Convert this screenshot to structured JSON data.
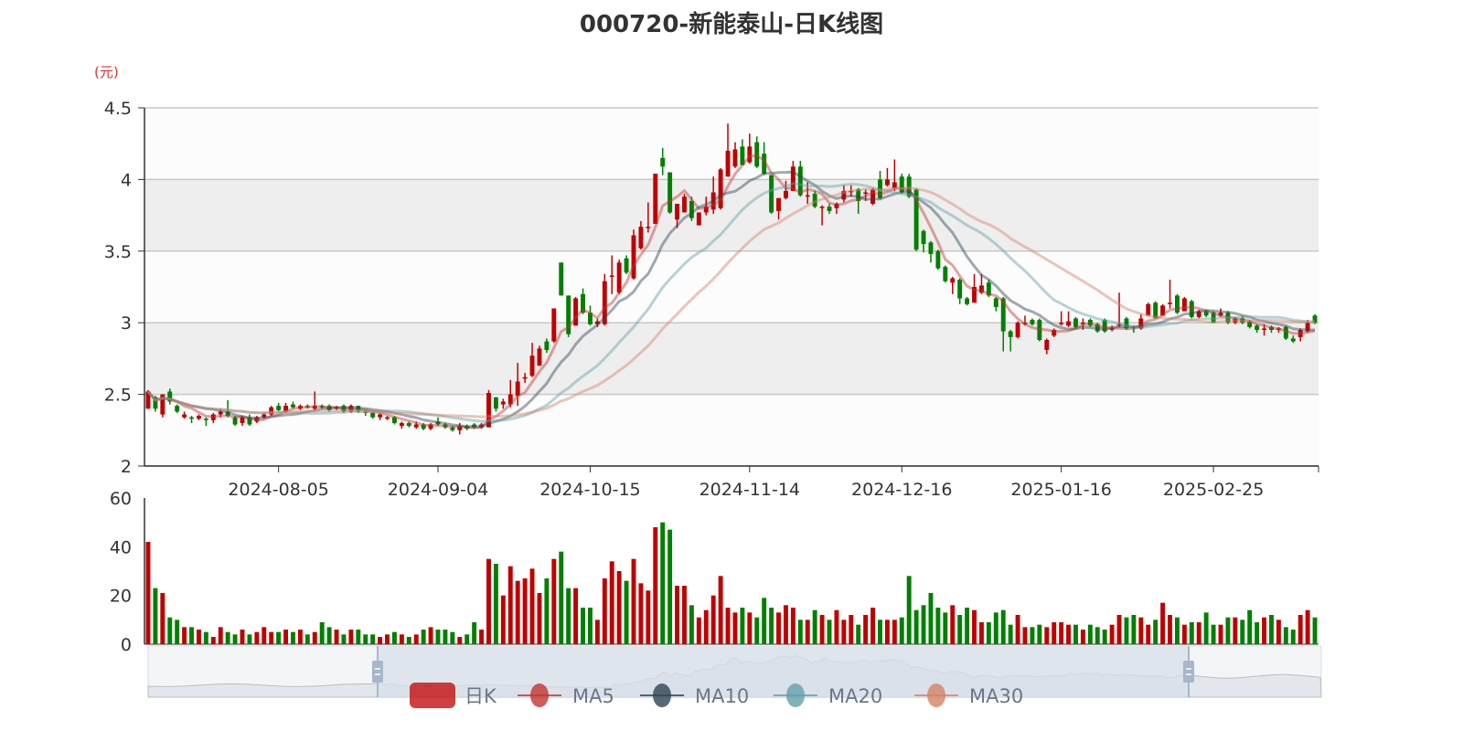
{
  "title": "000720-新能泰山-日K线图",
  "unit_label": "(元)",
  "colors": {
    "up": "#c00000",
    "down": "#008000",
    "ma5": "#c23531",
    "ma10": "#2f4554",
    "ma20": "#61a0a8",
    "ma30": "#d48265",
    "band": "#eeeeee",
    "zoom_fill": "#d8dfe9"
  },
  "legend": [
    {
      "label": "日K",
      "icon": "candlestick-icon",
      "color": "#c00000"
    },
    {
      "label": "MA5",
      "icon": "line-dot-icon",
      "color": "#c23531"
    },
    {
      "label": "MA10",
      "icon": "line-dot-icon",
      "color": "#2f4554"
    },
    {
      "label": "MA20",
      "icon": "line-dot-icon",
      "color": "#61a0a8"
    },
    {
      "label": "MA30",
      "icon": "line-dot-icon",
      "color": "#d48265"
    }
  ],
  "chart_data": {
    "type": "candlestick",
    "title": "000720-新能泰山-日K线图",
    "ylabel": "(元)",
    "ylim": [
      2,
      4.5
    ],
    "yticks": [
      "2",
      "2.5",
      "3",
      "3.5",
      "4",
      "4.5"
    ],
    "volume_ylim": [
      0,
      60
    ],
    "volume_yticks": [
      "0",
      "20",
      "40",
      "60"
    ],
    "xticks": [
      {
        "index": 18,
        "label": "2024-08-05"
      },
      {
        "index": 40,
        "label": "2024-09-04"
      },
      {
        "index": 61,
        "label": "2024-10-15"
      },
      {
        "index": 83,
        "label": "2024-11-14"
      },
      {
        "index": 104,
        "label": "2024-12-16"
      },
      {
        "index": 126,
        "label": "2025-01-16"
      },
      {
        "index": 147,
        "label": "2025-02-25"
      }
    ],
    "candle_format": [
      "open",
      "close",
      "low",
      "high"
    ],
    "candles": [
      [
        2.4,
        2.52,
        2.4,
        2.53
      ],
      [
        2.48,
        2.4,
        2.38,
        2.49
      ],
      [
        2.36,
        2.5,
        2.34,
        2.5
      ],
      [
        2.52,
        2.45,
        2.43,
        2.54
      ],
      [
        2.42,
        2.38,
        2.37,
        2.43
      ],
      [
        2.34,
        2.36,
        2.33,
        2.38
      ],
      [
        2.34,
        2.33,
        2.3,
        2.35
      ],
      [
        2.33,
        2.35,
        2.32,
        2.36
      ],
      [
        2.33,
        2.32,
        2.28,
        2.34
      ],
      [
        2.32,
        2.36,
        2.3,
        2.37
      ],
      [
        2.36,
        2.38,
        2.34,
        2.4
      ],
      [
        2.38,
        2.35,
        2.34,
        2.46
      ],
      [
        2.34,
        2.29,
        2.28,
        2.35
      ],
      [
        2.3,
        2.34,
        2.28,
        2.35
      ],
      [
        2.34,
        2.29,
        2.28,
        2.36
      ],
      [
        2.31,
        2.34,
        2.3,
        2.35
      ],
      [
        2.34,
        2.36,
        2.33,
        2.37
      ],
      [
        2.36,
        2.41,
        2.35,
        2.42
      ],
      [
        2.42,
        2.39,
        2.38,
        2.44
      ],
      [
        2.38,
        2.42,
        2.37,
        2.44
      ],
      [
        2.43,
        2.41,
        2.4,
        2.45
      ],
      [
        2.4,
        2.42,
        2.39,
        2.43
      ],
      [
        2.42,
        2.41,
        2.4,
        2.43
      ],
      [
        2.4,
        2.42,
        2.39,
        2.52
      ],
      [
        2.42,
        2.41,
        2.4,
        2.43
      ],
      [
        2.42,
        2.39,
        2.38,
        2.43
      ],
      [
        2.4,
        2.41,
        2.39,
        2.42
      ],
      [
        2.42,
        2.38,
        2.37,
        2.43
      ],
      [
        2.38,
        2.42,
        2.37,
        2.43
      ],
      [
        2.42,
        2.38,
        2.37,
        2.42
      ],
      [
        2.38,
        2.37,
        2.35,
        2.39
      ],
      [
        2.37,
        2.34,
        2.33,
        2.38
      ],
      [
        2.34,
        2.36,
        2.32,
        2.37
      ],
      [
        2.33,
        2.34,
        2.32,
        2.35
      ],
      [
        2.34,
        2.3,
        2.29,
        2.35
      ],
      [
        2.28,
        2.3,
        2.26,
        2.31
      ],
      [
        2.3,
        2.28,
        2.27,
        2.31
      ],
      [
        2.27,
        2.29,
        2.26,
        2.31
      ],
      [
        2.29,
        2.26,
        2.25,
        2.3
      ],
      [
        2.26,
        2.29,
        2.25,
        2.3
      ],
      [
        2.31,
        2.29,
        2.28,
        2.34
      ],
      [
        2.29,
        2.27,
        2.26,
        2.3
      ],
      [
        2.27,
        2.25,
        2.24,
        2.28
      ],
      [
        2.25,
        2.28,
        2.22,
        2.3
      ],
      [
        2.28,
        2.26,
        2.25,
        2.29
      ],
      [
        2.29,
        2.27,
        2.26,
        2.3
      ],
      [
        2.27,
        2.29,
        2.26,
        2.3
      ],
      [
        2.27,
        2.51,
        2.27,
        2.53
      ],
      [
        2.48,
        2.4,
        2.38,
        2.48
      ],
      [
        2.43,
        2.45,
        2.4,
        2.47
      ],
      [
        2.43,
        2.5,
        2.41,
        2.6
      ],
      [
        2.49,
        2.59,
        2.42,
        2.72
      ],
      [
        2.61,
        2.62,
        2.58,
        2.65
      ],
      [
        2.63,
        2.77,
        2.62,
        2.86
      ],
      [
        2.7,
        2.82,
        2.7,
        2.84
      ],
      [
        2.87,
        2.81,
        2.79,
        2.89
      ],
      [
        2.87,
        3.1,
        2.86,
        3.1
      ],
      [
        3.42,
        3.19,
        3.19,
        3.42
      ],
      [
        3.19,
        2.92,
        2.9,
        3.19
      ],
      [
        2.98,
        3.17,
        2.98,
        3.18
      ],
      [
        3.2,
        3.07,
        3.06,
        3.24
      ],
      [
        3.07,
        2.99,
        2.98,
        3.12
      ],
      [
        2.99,
        3.01,
        2.97,
        3.03
      ],
      [
        2.99,
        3.29,
        2.98,
        3.34
      ],
      [
        3.32,
        3.33,
        3.2,
        3.47
      ],
      [
        3.21,
        3.42,
        3.2,
        3.44
      ],
      [
        3.45,
        3.35,
        3.34,
        3.47
      ],
      [
        3.31,
        3.61,
        3.3,
        3.65
      ],
      [
        3.52,
        3.67,
        3.51,
        3.71
      ],
      [
        3.66,
        3.67,
        3.63,
        3.84
      ],
      [
        3.69,
        4.04,
        3.69,
        4.04
      ],
      [
        4.15,
        4.09,
        4.03,
        4.22
      ],
      [
        4.05,
        3.77,
        3.76,
        4.05
      ],
      [
        3.72,
        3.83,
        3.66,
        3.83
      ],
      [
        3.77,
        3.88,
        3.77,
        3.9
      ],
      [
        3.85,
        3.73,
        3.71,
        3.88
      ],
      [
        3.68,
        3.77,
        3.68,
        3.77
      ],
      [
        3.77,
        3.81,
        3.75,
        3.88
      ],
      [
        3.79,
        3.91,
        3.76,
        4.02
      ],
      [
        3.8,
        4.07,
        3.79,
        4.08
      ],
      [
        4.02,
        4.2,
        4.02,
        4.39
      ],
      [
        4.09,
        4.21,
        4.08,
        4.26
      ],
      [
        4.23,
        4.1,
        4.1,
        4.28
      ],
      [
        4.12,
        4.23,
        4.11,
        4.32
      ],
      [
        4.26,
        4.09,
        4.08,
        4.3
      ],
      [
        4.18,
        4.04,
        4.03,
        4.26
      ],
      [
        4.03,
        3.77,
        3.76,
        4.03
      ],
      [
        3.78,
        3.87,
        3.72,
        3.87
      ],
      [
        3.87,
        3.92,
        3.86,
        3.99
      ],
      [
        3.92,
        4.09,
        3.92,
        4.13
      ],
      [
        4.09,
        3.89,
        3.88,
        4.13
      ],
      [
        3.88,
        3.89,
        3.83,
        3.98
      ],
      [
        3.9,
        3.81,
        3.8,
        3.92
      ],
      [
        3.81,
        3.81,
        3.68,
        3.82
      ],
      [
        3.81,
        3.78,
        3.76,
        3.83
      ],
      [
        3.8,
        3.83,
        3.76,
        3.84
      ],
      [
        3.86,
        3.92,
        3.84,
        3.96
      ],
      [
        3.91,
        3.92,
        3.88,
        3.96
      ],
      [
        3.93,
        3.85,
        3.76,
        3.94
      ],
      [
        3.9,
        3.91,
        3.85,
        3.93
      ],
      [
        3.83,
        3.93,
        3.82,
        3.94
      ],
      [
        4.0,
        3.87,
        3.86,
        4.06
      ],
      [
        3.96,
        4.0,
        3.95,
        4.08
      ],
      [
        3.94,
        3.98,
        3.92,
        4.14
      ],
      [
        4.02,
        3.91,
        3.9,
        4.04
      ],
      [
        4.02,
        3.88,
        3.87,
        4.04
      ],
      [
        3.93,
        3.51,
        3.5,
        3.94
      ],
      [
        3.64,
        3.55,
        3.49,
        3.65
      ],
      [
        3.56,
        3.48,
        3.42,
        3.57
      ],
      [
        3.5,
        3.38,
        3.37,
        3.51
      ],
      [
        3.39,
        3.29,
        3.28,
        3.4
      ],
      [
        3.28,
        3.31,
        3.2,
        3.32
      ],
      [
        3.3,
        3.17,
        3.13,
        3.31
      ],
      [
        3.17,
        3.13,
        3.12,
        3.18
      ],
      [
        3.14,
        3.25,
        3.14,
        3.34
      ],
      [
        3.21,
        3.26,
        3.2,
        3.34
      ],
      [
        3.28,
        3.19,
        3.18,
        3.3
      ],
      [
        3.17,
        3.11,
        3.08,
        3.18
      ],
      [
        3.17,
        2.94,
        2.8,
        3.18
      ],
      [
        2.94,
        2.9,
        2.8,
        2.95
      ],
      [
        2.9,
        3.0,
        2.89,
        3.01
      ],
      [
        3.0,
        3.0,
        2.98,
        3.05
      ],
      [
        3.02,
        2.99,
        2.98,
        3.03
      ],
      [
        3.02,
        2.88,
        2.87,
        3.03
      ],
      [
        2.81,
        2.88,
        2.78,
        2.89
      ],
      [
        2.91,
        2.95,
        2.9,
        2.96
      ],
      [
        2.99,
        3.0,
        2.98,
        3.08
      ],
      [
        2.98,
        3.01,
        2.97,
        3.08
      ],
      [
        3.03,
        2.97,
        2.96,
        3.04
      ],
      [
        3.0,
        3.0,
        2.95,
        3.03
      ],
      [
        3.02,
        2.98,
        2.97,
        3.03
      ],
      [
        2.99,
        2.94,
        2.93,
        3.0
      ],
      [
        3.02,
        2.94,
        2.93,
        3.03
      ],
      [
        2.96,
        2.96,
        2.94,
        2.98
      ],
      [
        2.98,
        2.99,
        2.97,
        3.21
      ],
      [
        3.03,
        2.96,
        2.95,
        3.04
      ],
      [
        2.97,
        2.96,
        2.93,
        2.98
      ],
      [
        2.96,
        3.03,
        2.95,
        3.06
      ],
      [
        3.05,
        3.13,
        3.05,
        3.14
      ],
      [
        3.14,
        3.03,
        3.03,
        3.15
      ],
      [
        3.05,
        3.12,
        3.05,
        3.13
      ],
      [
        3.13,
        3.14,
        3.1,
        3.3
      ],
      [
        3.19,
        3.07,
        3.06,
        3.2
      ],
      [
        3.08,
        3.17,
        3.08,
        3.18
      ],
      [
        3.15,
        3.04,
        3.03,
        3.16
      ],
      [
        3.04,
        3.08,
        3.03,
        3.09
      ],
      [
        3.08,
        3.05,
        3.04,
        3.09
      ],
      [
        3.07,
        3.0,
        3.0,
        3.08
      ],
      [
        3.05,
        3.07,
        3.04,
        3.1
      ],
      [
        3.07,
        3.0,
        2.99,
        3.08
      ],
      [
        3.0,
        3.03,
        2.99,
        3.04
      ],
      [
        3.03,
        3.0,
        2.99,
        3.05
      ],
      [
        3.01,
        2.97,
        2.96,
        3.02
      ],
      [
        2.98,
        2.95,
        2.93,
        2.99
      ],
      [
        2.95,
        2.96,
        2.91,
        2.99
      ],
      [
        2.97,
        2.95,
        2.93,
        2.98
      ],
      [
        2.95,
        2.96,
        2.93,
        2.97
      ],
      [
        2.97,
        2.89,
        2.88,
        2.98
      ],
      [
        2.89,
        2.87,
        2.86,
        2.91
      ],
      [
        2.9,
        2.95,
        2.87,
        2.96
      ],
      [
        2.94,
        3.0,
        2.93,
        3.02
      ],
      [
        3.05,
        3.0,
        2.99,
        3.06
      ]
    ],
    "volumes": [
      42,
      23,
      21,
      11,
      10,
      7,
      7,
      6,
      5,
      3,
      7,
      5,
      4,
      6,
      4,
      5,
      7,
      5,
      5,
      6,
      5,
      6,
      4,
      5,
      9,
      7,
      6,
      4,
      6,
      6,
      4,
      4,
      3,
      4,
      5,
      4,
      3,
      4,
      6,
      7,
      6,
      6,
      5,
      3,
      4,
      9,
      6,
      35,
      33,
      20,
      32,
      26,
      27,
      31,
      21,
      27,
      35,
      38,
      23,
      23,
      15,
      15,
      10,
      27,
      34,
      30,
      26,
      35,
      25,
      22,
      48,
      50,
      47,
      24,
      24,
      16,
      11,
      14,
      20,
      28,
      15,
      13,
      15,
      13,
      11,
      19,
      15,
      13,
      16,
      15,
      10,
      10,
      14,
      12,
      10,
      14,
      10,
      12,
      8,
      12,
      15,
      10,
      10,
      10,
      11,
      28,
      14,
      16,
      21,
      15,
      13,
      16,
      12,
      15,
      14,
      9,
      9,
      13,
      14,
      8,
      12,
      7,
      7,
      8,
      7,
      9,
      9,
      8,
      8,
      6,
      8,
      7,
      6,
      8,
      12,
      11,
      12,
      11,
      8,
      10,
      17,
      12,
      11,
      8,
      9,
      9,
      13,
      8,
      8,
      11,
      11,
      10,
      14,
      9,
      11,
      12,
      10,
      7,
      6,
      12,
      14,
      11
    ],
    "moving_averages": [
      "MA5",
      "MA10",
      "MA20",
      "MA30"
    ],
    "data_zoom_window": "partial range selected"
  }
}
